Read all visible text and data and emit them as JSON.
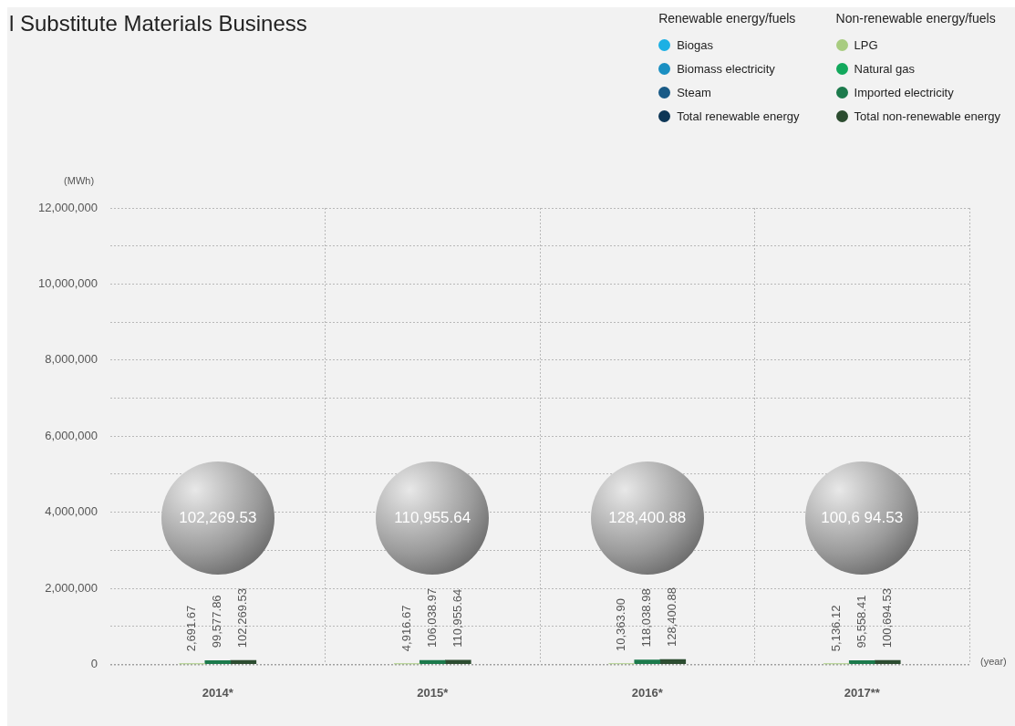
{
  "chart_data": {
    "type": "bar",
    "title": "l Substitute Materials Business",
    "ylabel": "(MWh)",
    "xlabel": "(year)",
    "categories": [
      "2014*",
      "2015*",
      "2016*",
      "2017**"
    ],
    "series": [
      {
        "name": "Biogas",
        "color": "#1cb0e4",
        "values": [
          null,
          null,
          null,
          null
        ]
      },
      {
        "name": "Biomass electricity",
        "color": "#1a8fc2",
        "values": [
          null,
          null,
          null,
          null
        ]
      },
      {
        "name": "Steam",
        "color": "#195a86",
        "values": [
          null,
          null,
          null,
          null
        ]
      },
      {
        "name": "Total renewable energy",
        "color": "#0d3656",
        "values": [
          null,
          null,
          null,
          null
        ]
      },
      {
        "name": "LPG",
        "color": "#a8cc80",
        "values": [
          2691.67,
          4916.67,
          10363.9,
          5136.12
        ],
        "value_labels": [
          "2,691.67",
          "4,916.67",
          "10,363.90",
          "5,136.12"
        ]
      },
      {
        "name": "Natural gas",
        "color": "#12a85c",
        "values": [
          null,
          null,
          null,
          null
        ]
      },
      {
        "name": "Imported electricity",
        "color": "#1c7a4c",
        "values": [
          99577.86,
          106038.97,
          118038.98,
          95558.41
        ],
        "value_labels": [
          "99,577.86",
          "106,038.97",
          "118,038.98",
          "95,558.41"
        ]
      },
      {
        "name": "Total non-renewable energy",
        "color": "#2c4c30",
        "values": [
          102269.53,
          110955.64,
          128400.88,
          100694.53
        ],
        "value_labels": [
          "102,269.53",
          "110,955.64",
          "128,400.88",
          "100,694.53"
        ]
      }
    ],
    "ylim": [
      0,
      12000000
    ],
    "yticks": [
      0,
      {
        "value": 1000000,
        "label": null
      },
      {
        "value": 2000000,
        "label": "2,000,000"
      },
      {
        "value": 3000000,
        "label": null
      },
      {
        "value": 4000000,
        "label": "4,000,000"
      },
      {
        "value": 5000000,
        "label": null
      },
      {
        "value": 6000000,
        "label": "6,000,000"
      },
      {
        "value": 7000000,
        "label": null
      },
      {
        "value": 8000000,
        "label": "8,000,000"
      },
      {
        "value": 9000000,
        "label": null
      },
      {
        "value": 10000000,
        "label": "10,000,000"
      },
      {
        "value": 11000000,
        "label": null
      },
      {
        "value": 12000000,
        "label": "12,000,000"
      }
    ],
    "grid": true,
    "legend": "top right",
    "annotations": [
      "Renewable energy/fuels",
      "Non-renewable energy/fuels",
      "102,269.53",
      "110,955.64",
      "128,400.88",
      "100,6 94.53"
    ]
  }
}
